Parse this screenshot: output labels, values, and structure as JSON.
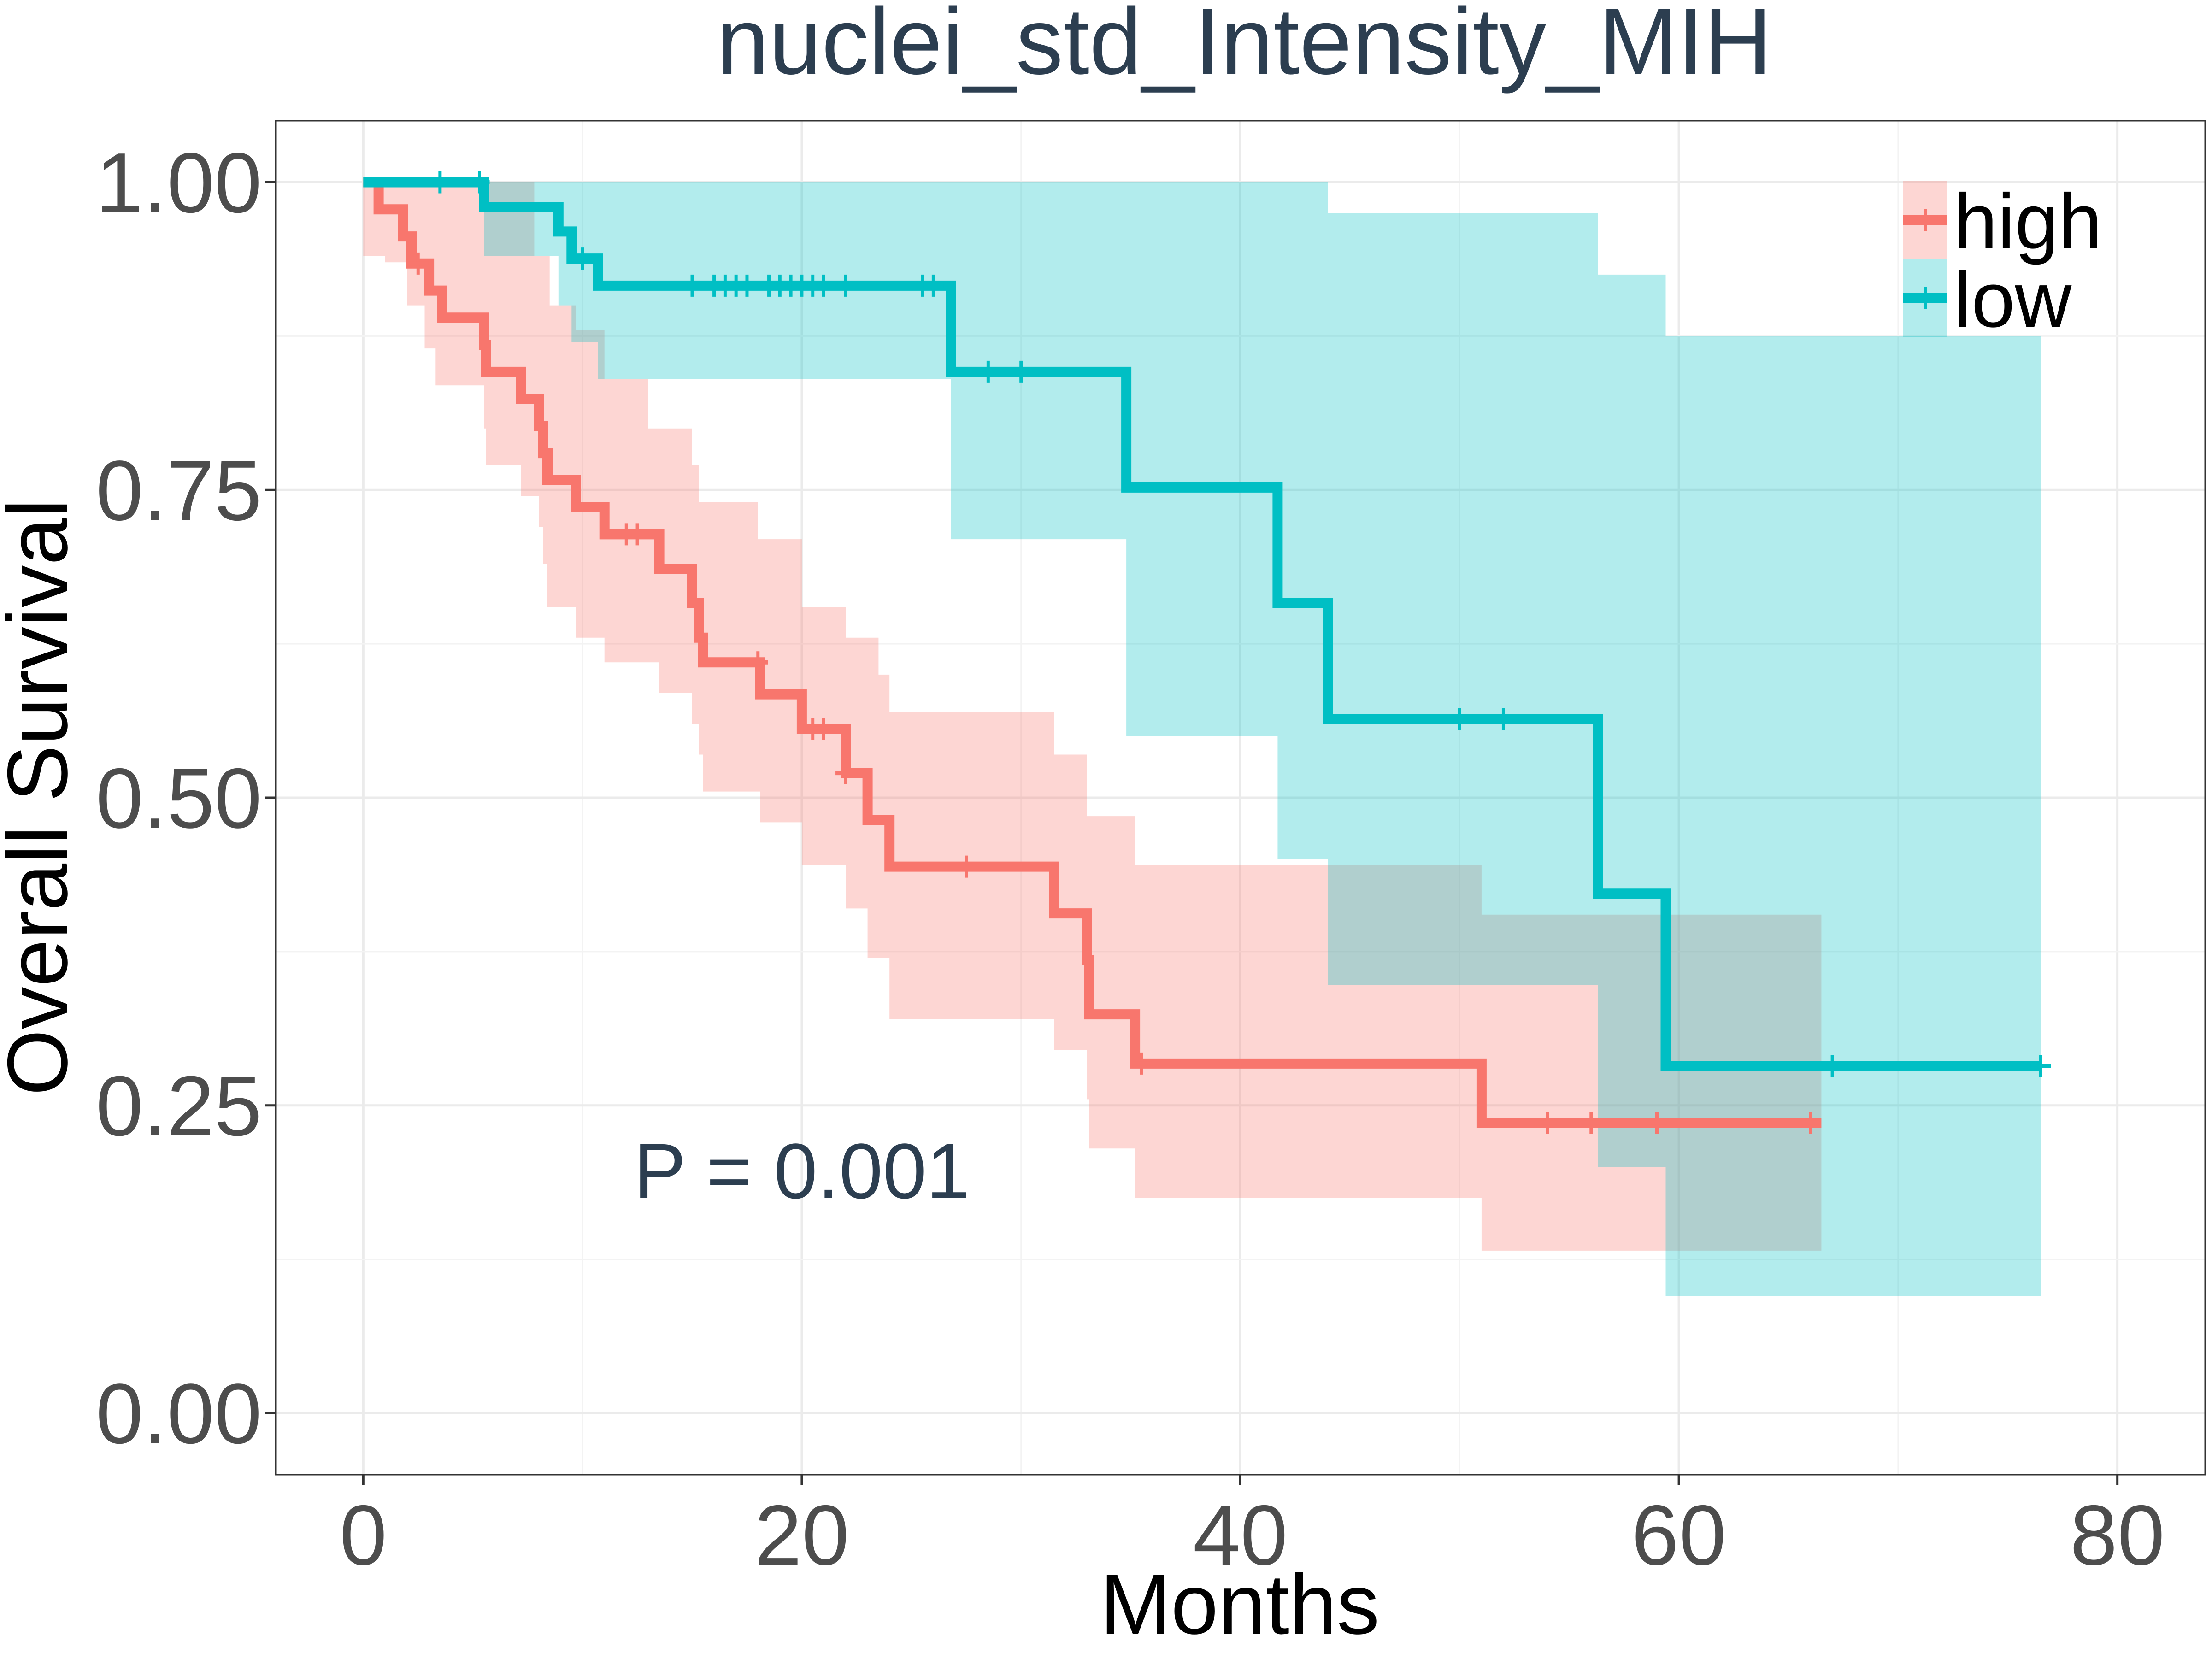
{
  "chart_data": {
    "type": "line",
    "subtype": "kaplan-meier-step",
    "title": "nuclei_std_Intensity_MIH",
    "xlabel": "Months",
    "ylabel": "Overall Survival",
    "xlim": [
      -4,
      84
    ],
    "ylim": [
      -0.05,
      1.05
    ],
    "x_ticks": [
      0,
      20,
      40,
      60,
      80
    ],
    "x_tick_labels": [
      "0",
      "20",
      "40",
      "60",
      "80"
    ],
    "y_ticks": [
      0,
      0.25,
      0.5,
      0.75,
      1.0
    ],
    "y_tick_labels": [
      "0.00",
      "0.25",
      "0.50",
      "0.75",
      "1.00"
    ],
    "grid": true,
    "legend": {
      "position": "top-right",
      "entries": [
        "high",
        "low"
      ]
    },
    "annotation": "P = 0.001",
    "annotation_position": {
      "x": 20,
      "y": 0.2
    },
    "series": [
      {
        "name": "high",
        "color": "#F8766D",
        "band_color": "#F8766D",
        "steps": [
          [
            0,
            1.0
          ],
          [
            0.7,
            0.978
          ],
          [
            1.8,
            0.956
          ],
          [
            2.2,
            0.934
          ],
          [
            3.0,
            0.912
          ],
          [
            3.6,
            0.89
          ],
          [
            5.5,
            0.868
          ],
          [
            5.6,
            0.846
          ],
          [
            7.2,
            0.824
          ],
          [
            8.0,
            0.802
          ],
          [
            8.2,
            0.78
          ],
          [
            8.4,
            0.758
          ],
          [
            9.7,
            0.736
          ],
          [
            11.0,
            0.714
          ],
          [
            13.5,
            0.686
          ],
          [
            15.0,
            0.658
          ],
          [
            15.3,
            0.63
          ],
          [
            15.5,
            0.61
          ],
          [
            18.1,
            0.584
          ],
          [
            20.0,
            0.556
          ],
          [
            22.0,
            0.52
          ],
          [
            23.0,
            0.482
          ],
          [
            24.0,
            0.444
          ],
          [
            31.5,
            0.406
          ],
          [
            33.0,
            0.368
          ],
          [
            33.1,
            0.324
          ],
          [
            35.2,
            0.284
          ],
          [
            51.0,
            0.236
          ],
          [
            66.5,
            0.236
          ]
        ],
        "ci_upper": [
          [
            0,
            1.0
          ],
          [
            5.5,
            1.0
          ],
          [
            7.8,
            0.94
          ],
          [
            8.5,
            0.9
          ],
          [
            9.7,
            0.88
          ],
          [
            11.0,
            0.84
          ],
          [
            13.0,
            0.8
          ],
          [
            15.0,
            0.77
          ],
          [
            15.3,
            0.74
          ],
          [
            18.0,
            0.71
          ],
          [
            20.0,
            0.655
          ],
          [
            22.0,
            0.63
          ],
          [
            23.5,
            0.6
          ],
          [
            24.0,
            0.57
          ],
          [
            31.5,
            0.535
          ],
          [
            33.0,
            0.485
          ],
          [
            35.2,
            0.445
          ],
          [
            51.0,
            0.405
          ],
          [
            66.5,
            0.405
          ]
        ],
        "ci_lower": [
          [
            0,
            0.94
          ],
          [
            1.0,
            0.935
          ],
          [
            2.0,
            0.9
          ],
          [
            2.8,
            0.865
          ],
          [
            3.3,
            0.835
          ],
          [
            5.5,
            0.8
          ],
          [
            5.6,
            0.77
          ],
          [
            7.2,
            0.745
          ],
          [
            8.0,
            0.72
          ],
          [
            8.2,
            0.69
          ],
          [
            8.4,
            0.655
          ],
          [
            9.7,
            0.63
          ],
          [
            11.0,
            0.61
          ],
          [
            13.5,
            0.585
          ],
          [
            15.0,
            0.56
          ],
          [
            15.3,
            0.535
          ],
          [
            15.5,
            0.505
          ],
          [
            18.1,
            0.48
          ],
          [
            20.0,
            0.445
          ],
          [
            22.0,
            0.41
          ],
          [
            23.0,
            0.37
          ],
          [
            24.0,
            0.32
          ],
          [
            31.5,
            0.295
          ],
          [
            33.0,
            0.255
          ],
          [
            33.1,
            0.215
          ],
          [
            35.2,
            0.175
          ],
          [
            51.0,
            0.132
          ],
          [
            66.5,
            0.132
          ]
        ],
        "censor_times": [
          2.5,
          12.0,
          12.5,
          18.0,
          20.5,
          21.0,
          22.0,
          27.5,
          35.5,
          54.0,
          56.0,
          59.0,
          66.0
        ]
      },
      {
        "name": "low",
        "color": "#00BFC4",
        "band_color": "#00BFC4",
        "steps": [
          [
            0,
            1.0
          ],
          [
            5.5,
            0.98
          ],
          [
            8.9,
            0.96
          ],
          [
            9.5,
            0.938
          ],
          [
            10.7,
            0.916
          ],
          [
            26.8,
            0.846
          ],
          [
            34.8,
            0.752
          ],
          [
            41.7,
            0.658
          ],
          [
            44.0,
            0.564
          ],
          [
            56.3,
            0.422
          ],
          [
            59.4,
            0.282
          ],
          [
            76.5,
            0.282
          ]
        ],
        "ci_upper": [
          [
            0,
            1.0
          ],
          [
            41.7,
            1.0
          ],
          [
            44.0,
            0.975
          ],
          [
            56.3,
            0.925
          ],
          [
            59.4,
            0.875
          ],
          [
            76.5,
            0.875
          ]
        ],
        "ci_lower": [
          [
            0,
            1.0
          ],
          [
            5.5,
            0.94
          ],
          [
            8.9,
            0.9
          ],
          [
            9.5,
            0.87
          ],
          [
            10.7,
            0.84
          ],
          [
            26.8,
            0.71
          ],
          [
            34.8,
            0.55
          ],
          [
            41.7,
            0.45
          ],
          [
            44.0,
            0.348
          ],
          [
            56.3,
            0.2
          ],
          [
            59.4,
            0.095
          ],
          [
            76.5,
            0.095
          ]
        ],
        "censor_times": [
          3.5,
          5.3,
          10.0,
          15.0,
          16.0,
          16.5,
          17.0,
          17.5,
          18.5,
          19.0,
          19.5,
          20.0,
          20.5,
          21.0,
          22.0,
          25.5,
          26.0,
          28.5,
          30.0,
          50.0,
          52.0,
          67.0,
          76.5
        ]
      }
    ]
  }
}
